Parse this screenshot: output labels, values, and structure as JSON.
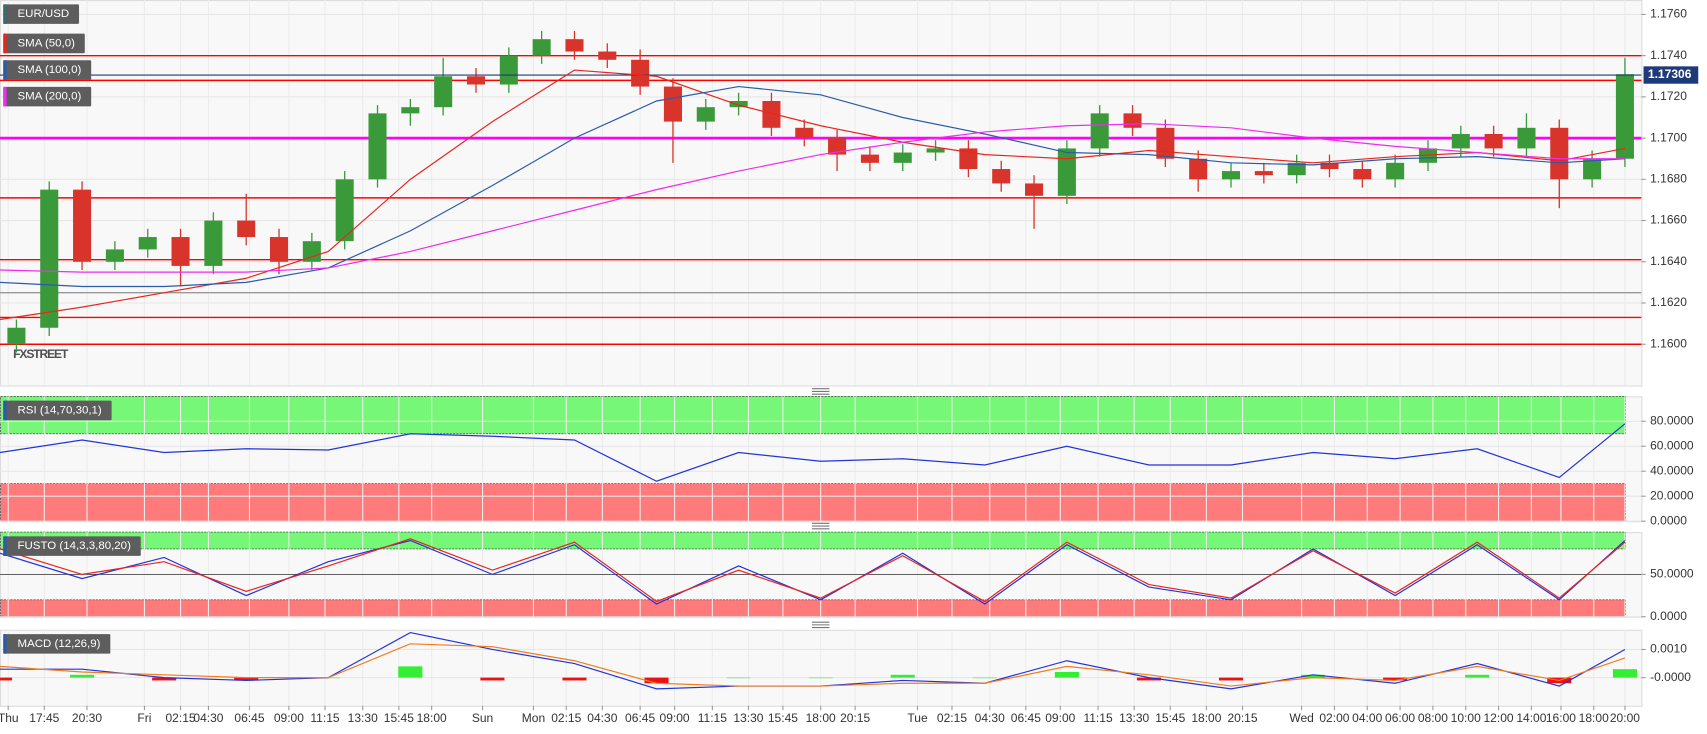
{
  "chart_data": [
    {
      "type": "candlestick",
      "title": "EUR/USD",
      "watermark": "FXSTREET",
      "up_color": "#3a9a3a",
      "down_color": "#d9342b",
      "xlim": [
        0,
        100
      ],
      "ylim": [
        1.158,
        1.1767
      ],
      "yticks": [
        {
          "value": 1.16,
          "label": "1.1600"
        },
        {
          "value": 1.162,
          "label": "1.1620"
        },
        {
          "value": 1.164,
          "label": "1.1640"
        },
        {
          "value": 1.166,
          "label": "1.1660"
        },
        {
          "value": 1.168,
          "label": "1.1680"
        },
        {
          "value": 1.17,
          "label": "1.1700"
        },
        {
          "value": 1.172,
          "label": "1.1720"
        },
        {
          "value": 1.174,
          "label": "1.1740"
        },
        {
          "value": 1.176,
          "label": "1.1760"
        }
      ],
      "x": [
        1,
        3,
        5,
        7,
        9,
        11,
        13,
        15,
        17,
        19,
        21,
        23,
        25,
        27,
        29,
        31,
        33,
        35,
        37,
        39,
        41,
        43,
        45,
        47,
        49,
        51,
        53,
        55,
        57,
        59,
        61,
        63,
        65,
        67,
        69,
        71,
        73,
        75,
        77,
        79,
        81,
        83,
        85,
        87,
        89,
        91,
        93,
        95,
        97,
        99
      ],
      "open": [
        1.16,
        1.1608,
        1.1675,
        1.164,
        1.1646,
        1.1652,
        1.1638,
        1.166,
        1.1652,
        1.164,
        1.165,
        1.168,
        1.1712,
        1.1715,
        1.173,
        1.1726,
        1.174,
        1.1748,
        1.1742,
        1.1738,
        1.1725,
        1.1708,
        1.1715,
        1.1718,
        1.1705,
        1.17,
        1.1692,
        1.1688,
        1.1693,
        1.1695,
        1.1685,
        1.1678,
        1.1672,
        1.1695,
        1.1712,
        1.1705,
        1.169,
        1.168,
        1.1684,
        1.1682,
        1.1688,
        1.1685,
        1.168,
        1.1688,
        1.1695,
        1.1702,
        1.1695,
        1.1705,
        1.168,
        1.169
      ],
      "high": [
        1.1612,
        1.1679,
        1.1679,
        1.165,
        1.1656,
        1.1656,
        1.1664,
        1.1673,
        1.1656,
        1.1654,
        1.1684,
        1.1716,
        1.1719,
        1.1739,
        1.1734,
        1.1744,
        1.1752,
        1.1752,
        1.1746,
        1.1743,
        1.1729,
        1.1719,
        1.1722,
        1.1722,
        1.1709,
        1.1704,
        1.1696,
        1.1697,
        1.1699,
        1.1699,
        1.1689,
        1.1682,
        1.1699,
        1.1716,
        1.1716,
        1.1709,
        1.1694,
        1.1688,
        1.1688,
        1.1692,
        1.1692,
        1.1689,
        1.1692,
        1.1699,
        1.1706,
        1.1706,
        1.1712,
        1.1709,
        1.1694,
        1.1739
      ],
      "low": [
        1.1596,
        1.1604,
        1.1636,
        1.1636,
        1.1642,
        1.1628,
        1.1634,
        1.1648,
        1.1634,
        1.1636,
        1.1646,
        1.1676,
        1.1706,
        1.1711,
        1.1722,
        1.1722,
        1.1736,
        1.1738,
        1.1734,
        1.1721,
        1.1688,
        1.1704,
        1.1711,
        1.1701,
        1.1696,
        1.1684,
        1.1684,
        1.1684,
        1.1689,
        1.1681,
        1.1674,
        1.1656,
        1.1668,
        1.1691,
        1.1701,
        1.1686,
        1.1674,
        1.1676,
        1.1678,
        1.1678,
        1.1681,
        1.1676,
        1.1676,
        1.1684,
        1.1691,
        1.1691,
        1.1691,
        1.1666,
        1.1676,
        1.1686
      ],
      "close": [
        1.1608,
        1.1675,
        1.164,
        1.1646,
        1.1652,
        1.1638,
        1.166,
        1.1652,
        1.164,
        1.165,
        1.168,
        1.1712,
        1.1715,
        1.173,
        1.1726,
        1.174,
        1.1748,
        1.1742,
        1.1738,
        1.1725,
        1.1708,
        1.1715,
        1.1718,
        1.1705,
        1.17,
        1.1692,
        1.1688,
        1.1693,
        1.1695,
        1.1685,
        1.1678,
        1.1672,
        1.1695,
        1.1712,
        1.1705,
        1.169,
        1.168,
        1.1684,
        1.1682,
        1.1688,
        1.1685,
        1.168,
        1.1688,
        1.1695,
        1.1702,
        1.1695,
        1.1705,
        1.168,
        1.169,
        1.1731
      ],
      "series": [
        {
          "name": "SMA (50,0)",
          "color": "#e8261c",
          "x": [
            0,
            5,
            10,
            15,
            20,
            25,
            30,
            35,
            40,
            45,
            50,
            55,
            60,
            65,
            70,
            75,
            80,
            85,
            90,
            95,
            99
          ],
          "values": [
            1.1612,
            1.1618,
            1.1625,
            1.1632,
            1.1645,
            1.168,
            1.1708,
            1.1733,
            1.173,
            1.1716,
            1.1706,
            1.1698,
            1.1692,
            1.169,
            1.1694,
            1.1691,
            1.1688,
            1.1691,
            1.1693,
            1.1689,
            1.1695
          ]
        },
        {
          "name": "SMA (100,0)",
          "color": "#2a5caa",
          "x": [
            0,
            5,
            10,
            15,
            20,
            25,
            30,
            35,
            40,
            45,
            50,
            55,
            60,
            65,
            70,
            75,
            80,
            85,
            90,
            95,
            99
          ],
          "values": [
            1.163,
            1.1628,
            1.1628,
            1.163,
            1.1637,
            1.1655,
            1.1677,
            1.17,
            1.1718,
            1.1725,
            1.1721,
            1.171,
            1.1702,
            1.1693,
            1.1692,
            1.1688,
            1.1687,
            1.169,
            1.1691,
            1.1688,
            1.169
          ]
        },
        {
          "name": "SMA (200,0)",
          "color": "#ee2bee",
          "x": [
            0,
            5,
            10,
            15,
            20,
            25,
            30,
            35,
            40,
            45,
            50,
            55,
            60,
            65,
            70,
            75,
            80,
            85,
            90,
            95,
            99
          ],
          "values": [
            1.1636,
            1.1635,
            1.1635,
            1.1635,
            1.1637,
            1.1645,
            1.1655,
            1.1665,
            1.1675,
            1.1684,
            1.1692,
            1.1698,
            1.1703,
            1.1706,
            1.1707,
            1.1705,
            1.17,
            1.1696,
            1.1693,
            1.169,
            1.169
          ]
        }
      ],
      "hlines": [
        {
          "value": 1.174,
          "color": "#ff0000"
        },
        {
          "value": 1.1728,
          "color": "#ff0000"
        },
        {
          "value": 1.17,
          "color": "#ff00ff"
        },
        {
          "value": 1.1671,
          "color": "#ff0000"
        },
        {
          "value": 1.1641,
          "color": "#ff0000"
        },
        {
          "value": 1.1625,
          "color": "#999999"
        },
        {
          "value": 1.1613,
          "color": "#ff0000"
        },
        {
          "value": 1.16,
          "color": "#ff0000"
        }
      ],
      "last_price": {
        "value": 1.17306,
        "label": "1.17306",
        "color": "#1f3a7a"
      }
    },
    {
      "type": "line",
      "title": "RSI (14,70,30,1)",
      "xlim": [
        0,
        100
      ],
      "ylim": [
        0,
        100
      ],
      "yticks": [
        {
          "value": 0,
          "label": "0.0000"
        },
        {
          "value": 20,
          "label": "20.0000"
        },
        {
          "value": 40,
          "label": "40.0000"
        },
        {
          "value": 60,
          "label": "60.0000"
        },
        {
          "value": 80,
          "label": "80.0000"
        }
      ],
      "bands": [
        {
          "from": 70,
          "to": 100,
          "color": "#77f777"
        },
        {
          "from": 0,
          "to": 30,
          "color": "#ff7b7b"
        }
      ],
      "series": [
        {
          "color": "#2233dd",
          "x": [
            0,
            5,
            10,
            15,
            20,
            25,
            30,
            35,
            40,
            45,
            50,
            55,
            60,
            65,
            70,
            75,
            80,
            85,
            90,
            95,
            99
          ],
          "values": [
            55,
            65,
            55,
            58,
            57,
            70,
            68,
            65,
            32,
            55,
            48,
            50,
            45,
            60,
            45,
            45,
            55,
            50,
            58,
            35,
            78
          ]
        }
      ]
    },
    {
      "type": "line",
      "title": "FUSTO (14,3,3,80,20)",
      "xlim": [
        0,
        100
      ],
      "ylim": [
        0,
        100
      ],
      "yticks": [
        {
          "value": 0,
          "label": "0.0000"
        },
        {
          "value": 50,
          "label": "50.0000"
        }
      ],
      "bands": [
        {
          "from": 80,
          "to": 100,
          "color": "#77f777"
        },
        {
          "from": 0,
          "to": 20,
          "color": "#ff7b7b"
        }
      ],
      "midline": 50,
      "series": [
        {
          "color": "#2233dd",
          "x": [
            0,
            5,
            10,
            15,
            20,
            25,
            30,
            35,
            40,
            45,
            50,
            55,
            60,
            65,
            70,
            75,
            80,
            85,
            90,
            95,
            99
          ],
          "values": [
            75,
            45,
            70,
            25,
            65,
            90,
            50,
            85,
            15,
            60,
            20,
            75,
            15,
            85,
            35,
            20,
            80,
            25,
            85,
            20,
            90
          ]
        },
        {
          "color": "#e8261c",
          "x": [
            0,
            5,
            10,
            15,
            20,
            25,
            30,
            35,
            40,
            45,
            50,
            55,
            60,
            65,
            70,
            75,
            80,
            85,
            90,
            95,
            99
          ],
          "values": [
            80,
            50,
            65,
            30,
            60,
            92,
            55,
            88,
            18,
            55,
            22,
            72,
            18,
            88,
            38,
            22,
            78,
            28,
            88,
            22,
            88
          ]
        }
      ]
    },
    {
      "type": "macd",
      "title": "MACD (12,26,9)",
      "xlim": [
        0,
        100
      ],
      "ylim": [
        -0.001,
        0.0017
      ],
      "yticks": [
        {
          "value": 0.001,
          "label": "0.0010"
        },
        {
          "value": 0,
          "label": "-0.0000"
        }
      ],
      "up_color": "#33ee33",
      "down_color": "#ee1111",
      "histogram": {
        "x": [
          0,
          5,
          10,
          15,
          20,
          25,
          30,
          35,
          40,
          45,
          50,
          55,
          60,
          65,
          70,
          75,
          80,
          85,
          90,
          95,
          99
        ],
        "values": [
          -0.0001,
          0.0001,
          -0.0001,
          -0.0001,
          0,
          0.0004,
          -0.0001,
          -0.0001,
          -0.0002,
          0,
          0,
          0.0001,
          0,
          0.0002,
          -0.0001,
          -0.0001,
          0.0001,
          -0.0001,
          0.0001,
          -0.0002,
          0.0003
        ]
      },
      "series": [
        {
          "color": "#2233dd",
          "x": [
            0,
            5,
            10,
            15,
            20,
            25,
            30,
            35,
            40,
            45,
            50,
            55,
            60,
            65,
            70,
            75,
            80,
            85,
            90,
            95,
            99
          ],
          "values": [
            0.0003,
            0.0003,
            0,
            -0.0001,
            0,
            0.0016,
            0.001,
            0.0005,
            -0.0004,
            -0.0003,
            -0.0003,
            -0.0001,
            -0.0002,
            0.0006,
            0,
            -0.0004,
            0.0001,
            -0.0002,
            0.0005,
            -0.0003,
            0.001
          ]
        },
        {
          "color": "#f07d1e",
          "x": [
            0,
            5,
            10,
            15,
            20,
            25,
            30,
            35,
            40,
            45,
            50,
            55,
            60,
            65,
            70,
            75,
            80,
            85,
            90,
            95,
            99
          ],
          "values": [
            0.0004,
            0.0002,
            0.0001,
            0,
            0,
            0.0012,
            0.0011,
            0.0006,
            -0.0002,
            -0.0003,
            -0.0003,
            -0.0002,
            -0.0002,
            0.0004,
            0.0001,
            -0.0003,
            0,
            -0.0001,
            0.0004,
            -0.0001,
            0.0007
          ]
        }
      ],
      "xticks": [
        {
          "value": 0.5,
          "label": "Thu"
        },
        {
          "value": 2.7,
          "label": "17:45"
        },
        {
          "value": 5.3,
          "label": "20:30"
        },
        {
          "value": 8.8,
          "label": "Fri"
        },
        {
          "value": 11,
          "label": "02:15"
        },
        {
          "value": 12.7,
          "label": "04:30"
        },
        {
          "value": 15.2,
          "label": "06:45"
        },
        {
          "value": 17.6,
          "label": "09:00"
        },
        {
          "value": 19.8,
          "label": "11:15"
        },
        {
          "value": 22.1,
          "label": "13:30"
        },
        {
          "value": 24.3,
          "label": "15:45"
        },
        {
          "value": 26.3,
          "label": "18:00"
        },
        {
          "value": 29.4,
          "label": "Sun"
        },
        {
          "value": 32.5,
          "label": "Mon"
        },
        {
          "value": 34.5,
          "label": "02:15"
        },
        {
          "value": 36.7,
          "label": "04:30"
        },
        {
          "value": 39,
          "label": "06:45"
        },
        {
          "value": 41.1,
          "label": "09:00"
        },
        {
          "value": 43.4,
          "label": "11:15"
        },
        {
          "value": 45.6,
          "label": "13:30"
        },
        {
          "value": 47.7,
          "label": "15:45"
        },
        {
          "value": 50,
          "label": "18:00"
        },
        {
          "value": 52.1,
          "label": "20:15"
        },
        {
          "value": 55.9,
          "label": "Tue"
        },
        {
          "value": 58,
          "label": "02:15"
        },
        {
          "value": 60.3,
          "label": "04:30"
        },
        {
          "value": 62.5,
          "label": "06:45"
        },
        {
          "value": 64.6,
          "label": "09:00"
        },
        {
          "value": 66.9,
          "label": "11:15"
        },
        {
          "value": 69.1,
          "label": "13:30"
        },
        {
          "value": 71.3,
          "label": "15:45"
        },
        {
          "value": 73.5,
          "label": "18:00"
        },
        {
          "value": 75.7,
          "label": "20:15"
        },
        {
          "value": 79.3,
          "label": "Wed"
        },
        {
          "value": 81.3,
          "label": "02:00"
        },
        {
          "value": 83.3,
          "label": "04:00"
        },
        {
          "value": 85.3,
          "label": "06:00"
        },
        {
          "value": 87.3,
          "label": "08:00"
        },
        {
          "value": 89.3,
          "label": "10:00"
        },
        {
          "value": 91.3,
          "label": "12:00"
        },
        {
          "value": 93.3,
          "label": "14:00"
        },
        {
          "value": 95.1,
          "label": "16:00"
        },
        {
          "value": 97.1,
          "label": "18:00"
        },
        {
          "value": 99,
          "label": "20:00"
        }
      ]
    }
  ]
}
